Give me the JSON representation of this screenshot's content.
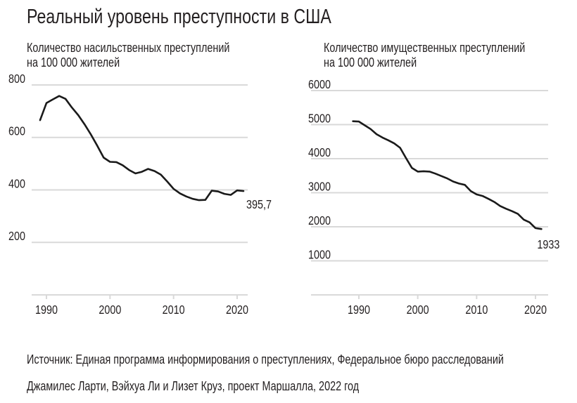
{
  "title": "Реальный уровень преступности в США",
  "source": "Источник: Единая программа информирования о преступлениях, Федеральное бюро расследований",
  "credit": "Джамилес Ларти, Вэйхуа Ли и Лизет Круз, проект Маршалла, 2022 год",
  "colors": {
    "line": "#1a1a1a",
    "grid": "#d9d9d9",
    "text": "#231f20"
  },
  "chart_data": [
    {
      "type": "line",
      "title_lines": [
        "Количество насильственных преступлений",
        "на 100 000 жителей"
      ],
      "xlabel": "",
      "ylabel": "",
      "xlim": [
        1987.5,
        2022.5
      ],
      "ylim": [
        0,
        800
      ],
      "yticks": [
        800,
        600,
        400,
        200
      ],
      "ytick_labels": [
        "800",
        "600",
        "400",
        "200"
      ],
      "xticks": [
        1990,
        2000,
        2010,
        2020
      ],
      "xtick_labels": [
        "1990",
        "2000",
        "2010",
        "2020"
      ],
      "grid": true,
      "end_label": "395,7",
      "x": [
        1989,
        1990,
        1991,
        1992,
        1993,
        1994,
        1995,
        1996,
        1997,
        1998,
        1999,
        2000,
        2001,
        2002,
        2003,
        2004,
        2005,
        2006,
        2007,
        2008,
        2009,
        2010,
        2011,
        2012,
        2013,
        2014,
        2015,
        2016,
        2017,
        2018,
        2019,
        2020,
        2021
      ],
      "y": [
        666,
        731,
        745,
        758,
        747,
        714,
        685,
        650,
        611,
        568,
        523,
        507,
        506,
        494,
        476,
        463,
        469,
        480,
        472,
        458,
        432,
        404,
        387,
        375,
        366,
        361,
        362,
        397,
        394,
        385,
        381,
        398,
        395.7
      ]
    },
    {
      "type": "line",
      "title_lines": [
        "Количество имущественных преступлений",
        "на 100 000 жителей"
      ],
      "xlabel": "",
      "ylabel": "",
      "xlim": [
        1985.8,
        2022.2
      ],
      "ylim": [
        0,
        6000
      ],
      "yticks": [
        6000,
        5000,
        4000,
        3000,
        2000,
        1000
      ],
      "ytick_labels": [
        "6000",
        "5000",
        "4000",
        "3000",
        "2000",
        "1000"
      ],
      "xticks": [
        1990,
        2000,
        2010,
        2020
      ],
      "xtick_labels": [
        "1990",
        "2000",
        "2010",
        "2020"
      ],
      "grid": true,
      "end_label": "1933",
      "x": [
        1989,
        1990,
        1991,
        1992,
        1993,
        1994,
        1995,
        1996,
        1997,
        1998,
        1999,
        2000,
        2001,
        2002,
        2003,
        2004,
        2005,
        2006,
        2007,
        2008,
        2009,
        2010,
        2011,
        2012,
        2013,
        2014,
        2015,
        2016,
        2017,
        2018,
        2019,
        2020,
        2021
      ],
      "y": [
        5100,
        5090,
        4980,
        4870,
        4720,
        4620,
        4540,
        4450,
        4320,
        4020,
        3730,
        3620,
        3630,
        3620,
        3560,
        3490,
        3420,
        3330,
        3270,
        3230,
        3050,
        2950,
        2905,
        2820,
        2730,
        2610,
        2530,
        2460,
        2380,
        2210,
        2130,
        1960,
        1933
      ]
    }
  ]
}
